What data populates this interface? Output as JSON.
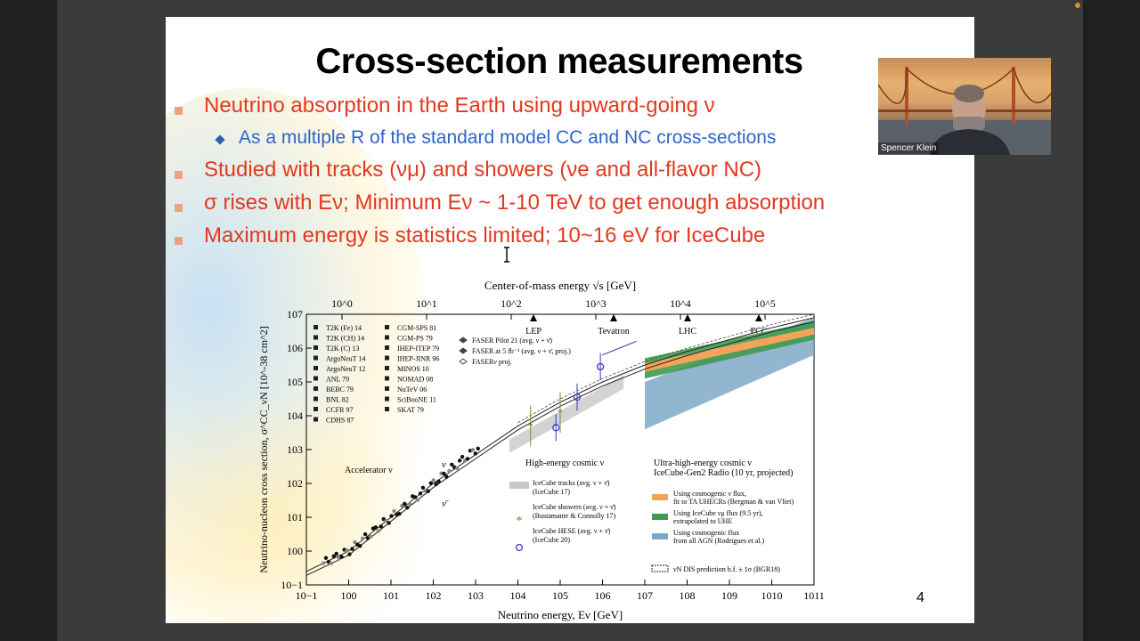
{
  "slide": {
    "title": "Cross-section measurements",
    "bullets": [
      {
        "text": "Neutrino absorption in the Earth using upward-going ν"
      },
      {
        "text": "Studied with tracks (νμ) and showers (νe and all-flavor NC)"
      },
      {
        "text": "σ rises with Eν; Minimum Eν ~ 1-10 TeV to get enough absorption"
      },
      {
        "text": "Maximum energy is statistics limited; 10~16 eV for IceCube"
      }
    ],
    "sub_bullet": "As a multiple R of the standard model CC and NC cross-sections",
    "page_number": "4"
  },
  "video": {
    "participant_name": "Spencer Klein"
  },
  "colors": {
    "bullet_red": "#e2391e",
    "sub_blue": "#2e64c8",
    "bullet_marker": "#f0a080"
  },
  "chart_data": {
    "type": "scatter",
    "title": "",
    "top_axis_label": "Center-of-mass energy √s [GeV]",
    "top_ticks": [
      "10^0",
      "10^1",
      "10^2",
      "10^3",
      "10^4",
      "10^5"
    ],
    "colliders": [
      "LEP",
      "Tevatron",
      "LHC",
      "FCC"
    ],
    "xlabel": "Neutrino energy, Eν [GeV]",
    "ylabel": "Neutrino-nucleon cross section, σ^CC_νN [10^-38 cm^2]",
    "x_scale": "log",
    "y_scale": "log",
    "xlim_exp": [
      -1,
      11
    ],
    "ylim_exp": [
      -1,
      7
    ],
    "x_ticks": [
      "10−1",
      "100",
      "101",
      "102",
      "103",
      "104",
      "105",
      "106",
      "107",
      "108",
      "109",
      "1010",
      "1011"
    ],
    "y_ticks": [
      "107",
      "106",
      "105",
      "104",
      "103",
      "102",
      "101",
      "100",
      "10−1"
    ],
    "legend_accel": [
      "T2K (Fe) 14",
      "T2K (CH) 14",
      "T2K (C) 13",
      "ArgoNeuT 14",
      "ArgoNeuT 12",
      "ANL 79",
      "BEBC 79",
      "BNL 82",
      "CCFR 97",
      "CDHS 87",
      "CGM-SPS 81",
      "CGM-PS 79",
      "IHEP-ITEP 79",
      "IHEP-JINR 96",
      "MINOS 10",
      "NOMAD 08",
      "NuTeV 06",
      "SciBooNE 11",
      "SKAT 79"
    ],
    "legend_faser": [
      "FASER Pilot 21 (avg. ν + ν̄)",
      "FASER at 5 fb⁻¹ (avg. ν + ν̄, proj.)",
      "FASERν proj."
    ],
    "region_labels": [
      "Accelerator ν",
      "High-energy cosmic ν",
      "Ultra-high-energy cosmic ν",
      "IceCube-Gen2 Radio (10 yr, projected)"
    ],
    "legend_he": [
      "IceCube tracks (avg. ν + ν̄)",
      "(IceCube 17)",
      "IceCube showers (avg. ν + ν̄)",
      "(Bustamante & Connolly 17)",
      "IceCube HESE (avg. ν + ν̄)",
      "(IceCube 20)"
    ],
    "legend_uhe": [
      "Using cosmogenic ν flux,",
      "fit to TA UHECRs (Bergman & van Vliet)",
      "Using IceCube νμ flux (9.5 yr),",
      "extrapolated to UHE",
      "Using cosmogenic flux",
      "from all AGN (Rodrigues et al.)"
    ],
    "dis_label": "νN DIS prediction b.f. ± 1σ (BGR18)",
    "curve_labels": [
      "ν",
      "ν̄"
    ],
    "sm_curve": {
      "x_log": [
        -1,
        0,
        1,
        2,
        3,
        4,
        5,
        6,
        7,
        8,
        9,
        10,
        11
      ],
      "y_log": [
        -0.6,
        0,
        1,
        2,
        2.85,
        3.7,
        4.4,
        5.0,
        5.5,
        5.9,
        6.25,
        6.6,
        6.9
      ]
    },
    "icecube_hese": {
      "x_log": [
        4.9,
        5.4,
        5.95
      ],
      "y_log": [
        3.65,
        4.55,
        5.45
      ]
    },
    "icecube_showers": {
      "x_log": [
        4.3,
        5.0
      ],
      "y_log": [
        3.7,
        4.1
      ]
    }
  }
}
